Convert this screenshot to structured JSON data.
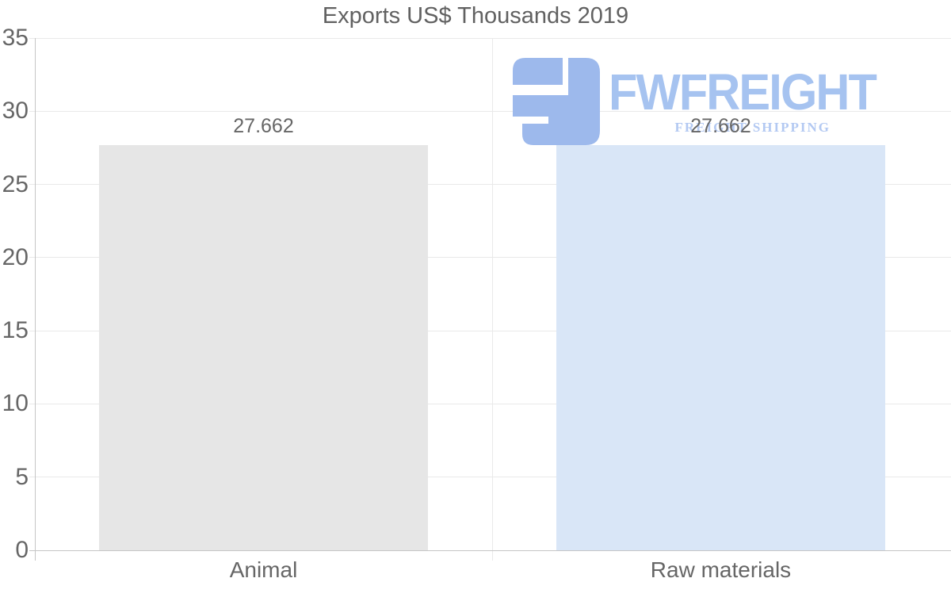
{
  "chart_data": {
    "type": "bar",
    "title": "Exports US$ Thousands 2019",
    "categories": [
      "Animal",
      "Raw materials"
    ],
    "values": [
      27.662,
      27.662
    ],
    "value_labels": [
      "27.662",
      "27.662"
    ],
    "bar_colors": [
      "#e6e6e6",
      "#d9e6f7"
    ],
    "xlabel": "",
    "ylabel": "",
    "ylim": [
      0,
      35
    ],
    "yticks": [
      0,
      5,
      10,
      15,
      20,
      25,
      30,
      35
    ],
    "grid": true,
    "legend": false
  },
  "watermark": {
    "brand": "FWFREIGHT",
    "tagline": "FREIGHT SHIPPING",
    "icon": "fwfreight-logo-icon",
    "icon_color": "#9db9ec",
    "brand_color": "#a6c3f0",
    "tagline_color": "#b3c9f2"
  },
  "colors": {
    "background": "#ffffff",
    "title_text": "#616161",
    "axis_text": "#666666",
    "value_label_text": "#666666",
    "gridline": "#e9e9e9",
    "axis_line": "#c6c6c6"
  }
}
